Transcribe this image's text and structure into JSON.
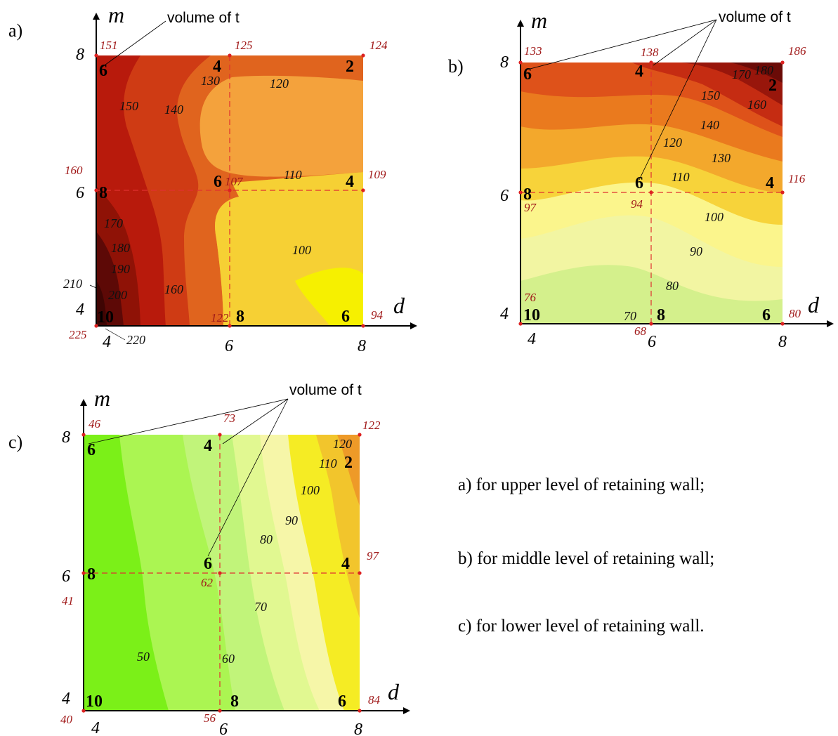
{
  "legend": [
    "a) for upper level of retaining wall;",
    "b) for middle level of retaining wall;",
    "c) for lower level of retaining wall."
  ],
  "chart_data": [
    {
      "type": "heatmap",
      "panel": "a)",
      "xlabel": "d",
      "ylabel": "m",
      "x_ticks": [
        "4",
        "6",
        "8"
      ],
      "y_ticks": [
        "4",
        "6",
        "8"
      ],
      "xlim": [
        4,
        8
      ],
      "ylim": [
        4,
        8
      ],
      "callout": "volume of t",
      "grid_values": [
        {
          "d": 4,
          "m": 8,
          "node": "6",
          "value": "151"
        },
        {
          "d": 6,
          "m": 8,
          "node": "4",
          "value": "125"
        },
        {
          "d": 8,
          "m": 8,
          "node": "2",
          "value": "124"
        },
        {
          "d": 4,
          "m": 6,
          "node": "8",
          "value": "160"
        },
        {
          "d": 6,
          "m": 6,
          "node": "6",
          "value": "107"
        },
        {
          "d": 8,
          "m": 6,
          "node": "4",
          "value": "109"
        },
        {
          "d": 4,
          "m": 4,
          "node": "10",
          "value": "225"
        },
        {
          "d": 6,
          "m": 4,
          "node": "8",
          "value": "122"
        },
        {
          "d": 8,
          "m": 4,
          "node": "6",
          "value": "94"
        }
      ],
      "contour_labels": [
        "130",
        "120",
        "150",
        "140",
        "110",
        "170",
        "180",
        "190",
        "200",
        "210",
        "160",
        "100",
        "220"
      ]
    },
    {
      "type": "heatmap",
      "panel": "b)",
      "xlabel": "d",
      "ylabel": "m",
      "x_ticks": [
        "4",
        "6",
        "8"
      ],
      "y_ticks": [
        "4",
        "6",
        "8"
      ],
      "xlim": [
        4,
        8
      ],
      "ylim": [
        4,
        8
      ],
      "callout": "volume of t",
      "grid_values": [
        {
          "d": 4,
          "m": 8,
          "node": "6",
          "value": "133"
        },
        {
          "d": 6,
          "m": 8,
          "node": "4",
          "value": "138"
        },
        {
          "d": 8,
          "m": 8,
          "node": "2",
          "value": "186"
        },
        {
          "d": 4,
          "m": 6,
          "node": "8",
          "value": "97"
        },
        {
          "d": 6,
          "m": 6,
          "node": "6",
          "value": "94"
        },
        {
          "d": 8,
          "m": 6,
          "node": "4",
          "value": "116"
        },
        {
          "d": 4,
          "m": 4,
          "node": "10",
          "value": "76"
        },
        {
          "d": 6,
          "m": 4,
          "node": "8",
          "value": "68"
        },
        {
          "d": 8,
          "m": 4,
          "node": "6",
          "value": "80"
        }
      ],
      "contour_labels": [
        "170",
        "180",
        "150",
        "160",
        "140",
        "120",
        "130",
        "110",
        "100",
        "90",
        "80",
        "70"
      ]
    },
    {
      "type": "heatmap",
      "panel": "c)",
      "xlabel": "d",
      "ylabel": "m",
      "x_ticks": [
        "4",
        "6",
        "8"
      ],
      "y_ticks": [
        "4",
        "6",
        "8"
      ],
      "xlim": [
        4,
        8
      ],
      "ylim": [
        4,
        8
      ],
      "callout": "volume of t",
      "grid_values": [
        {
          "d": 4,
          "m": 8,
          "node": "6",
          "value": "46"
        },
        {
          "d": 6,
          "m": 8,
          "node": "4",
          "value": "73"
        },
        {
          "d": 8,
          "m": 8,
          "node": "2",
          "value": "122"
        },
        {
          "d": 4,
          "m": 6,
          "node": "8",
          "value": "41"
        },
        {
          "d": 6,
          "m": 6,
          "node": "6",
          "value": "62"
        },
        {
          "d": 8,
          "m": 6,
          "node": "4",
          "value": "97"
        },
        {
          "d": 4,
          "m": 4,
          "node": "10",
          "value": "40"
        },
        {
          "d": 6,
          "m": 4,
          "node": "8",
          "value": "56"
        },
        {
          "d": 8,
          "m": 4,
          "node": "6",
          "value": "84"
        }
      ],
      "contour_labels": [
        "120",
        "110",
        "100",
        "90",
        "80",
        "70",
        "60",
        "50"
      ]
    }
  ],
  "colors": {
    "grid_line": "#e03030",
    "node_point": "#dd2222",
    "value_text": "#a01818"
  }
}
